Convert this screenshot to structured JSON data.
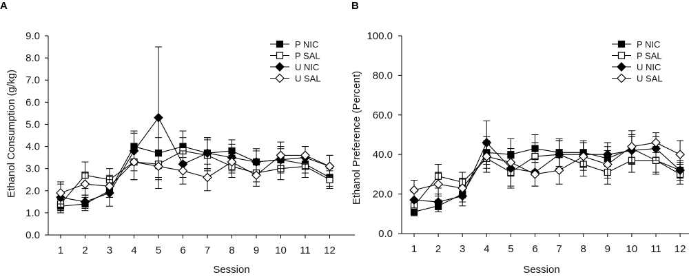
{
  "chart_data": [
    {
      "type": "line",
      "panel_label": "A",
      "title": "",
      "xlabel": "Session",
      "ylabel": "Ethanol Consumption (g/kg)",
      "ylim": [
        0,
        9
      ],
      "y_ticks": [
        "0.0",
        "1.0",
        "2.0",
        "3.0",
        "4.0",
        "5.0",
        "6.0",
        "7.0",
        "8.0",
        "9.0"
      ],
      "y_tick_values": [
        0,
        1,
        2,
        3,
        4,
        5,
        6,
        7,
        8,
        9
      ],
      "x": [
        1,
        2,
        3,
        4,
        5,
        6,
        7,
        8,
        9,
        10,
        11,
        12
      ],
      "x_ticks": [
        "1",
        "2",
        "3",
        "4",
        "5",
        "6",
        "7",
        "8",
        "9",
        "10",
        "11",
        "12"
      ],
      "legend_position": "top-right",
      "series": [
        {
          "name": "P NIC",
          "marker": "square-filled",
          "values": [
            1.3,
            1.4,
            2.0,
            4.0,
            3.7,
            4.0,
            3.7,
            3.8,
            3.3,
            3.4,
            3.2,
            2.6
          ],
          "errors": [
            0.3,
            0.3,
            0.3,
            0.6,
            0.7,
            0.7,
            0.7,
            0.5,
            0.5,
            0.5,
            0.4,
            0.4
          ]
        },
        {
          "name": "P SAL",
          "marker": "square-open",
          "values": [
            1.4,
            2.7,
            2.5,
            3.3,
            3.2,
            3.8,
            3.6,
            3.1,
            2.8,
            3.0,
            3.1,
            2.5
          ],
          "errors": [
            0.3,
            0.6,
            0.5,
            0.8,
            0.6,
            0.6,
            0.7,
            0.5,
            0.4,
            0.5,
            0.5,
            0.4
          ]
        },
        {
          "name": "U NIC",
          "marker": "diamond-filled",
          "values": [
            1.7,
            1.5,
            1.9,
            3.8,
            5.3,
            3.2,
            3.7,
            3.5,
            3.3,
            3.4,
            3.5,
            3.1
          ],
          "errors": [
            0.6,
            0.3,
            0.6,
            0.9,
            3.2,
            0.6,
            0.7,
            0.6,
            0.6,
            0.6,
            0.5,
            0.5
          ]
        },
        {
          "name": "U SAL",
          "marker": "diamond-open",
          "values": [
            1.9,
            2.3,
            2.2,
            3.3,
            3.1,
            2.9,
            2.6,
            3.3,
            2.7,
            3.6,
            3.6,
            3.1
          ],
          "errors": [
            0.5,
            0.5,
            0.5,
            0.8,
            0.6,
            0.6,
            0.6,
            0.5,
            0.5,
            0.6,
            0.4,
            0.5
          ]
        }
      ]
    },
    {
      "type": "line",
      "panel_label": "B",
      "title": "",
      "xlabel": "Session",
      "ylabel": "Ethanol Preference (Percent)",
      "ylim": [
        0,
        100
      ],
      "y_ticks": [
        "0.0",
        "20.0",
        "40.0",
        "60.0",
        "80.0",
        "100.0"
      ],
      "y_tick_values": [
        0,
        20,
        40,
        60,
        80,
        100
      ],
      "x": [
        1,
        2,
        3,
        4,
        5,
        6,
        7,
        8,
        9,
        10,
        11,
        12
      ],
      "x_ticks": [
        "1",
        "2",
        "3",
        "4",
        "5",
        "6",
        "7",
        "8",
        "9",
        "10",
        "11",
        "12"
      ],
      "legend_position": "top-right",
      "series": [
        {
          "name": "P NIC",
          "marker": "square-filled",
          "values": [
            11,
            14,
            20,
            41,
            40,
            43,
            41,
            41,
            38,
            43,
            37,
            32
          ],
          "errors": [
            2,
            3,
            4,
            8,
            8,
            7,
            7,
            6,
            6,
            7,
            7,
            4
          ]
        },
        {
          "name": "P SAL",
          "marker": "square-open",
          "values": [
            14,
            29,
            26,
            38,
            31,
            39,
            40,
            35,
            31,
            37,
            37,
            30
          ],
          "errors": [
            3,
            6,
            5,
            7,
            7,
            7,
            7,
            6,
            6,
            6,
            6,
            5
          ]
        },
        {
          "name": "U NIC",
          "marker": "diamond-filled",
          "values": [
            17,
            16,
            19,
            46,
            33,
            31,
            40,
            40,
            40,
            42,
            43,
            32
          ],
          "errors": [
            4,
            4,
            5,
            11,
            10,
            7,
            7,
            6,
            6,
            7,
            6,
            5
          ]
        },
        {
          "name": "U SAL",
          "marker": "diamond-open",
          "values": [
            22,
            25,
            23,
            39,
            36,
            30,
            32,
            39,
            35,
            44,
            46,
            40
          ],
          "errors": [
            5,
            6,
            5,
            8,
            7,
            6,
            7,
            7,
            7,
            8,
            5,
            7
          ]
        }
      ]
    }
  ]
}
